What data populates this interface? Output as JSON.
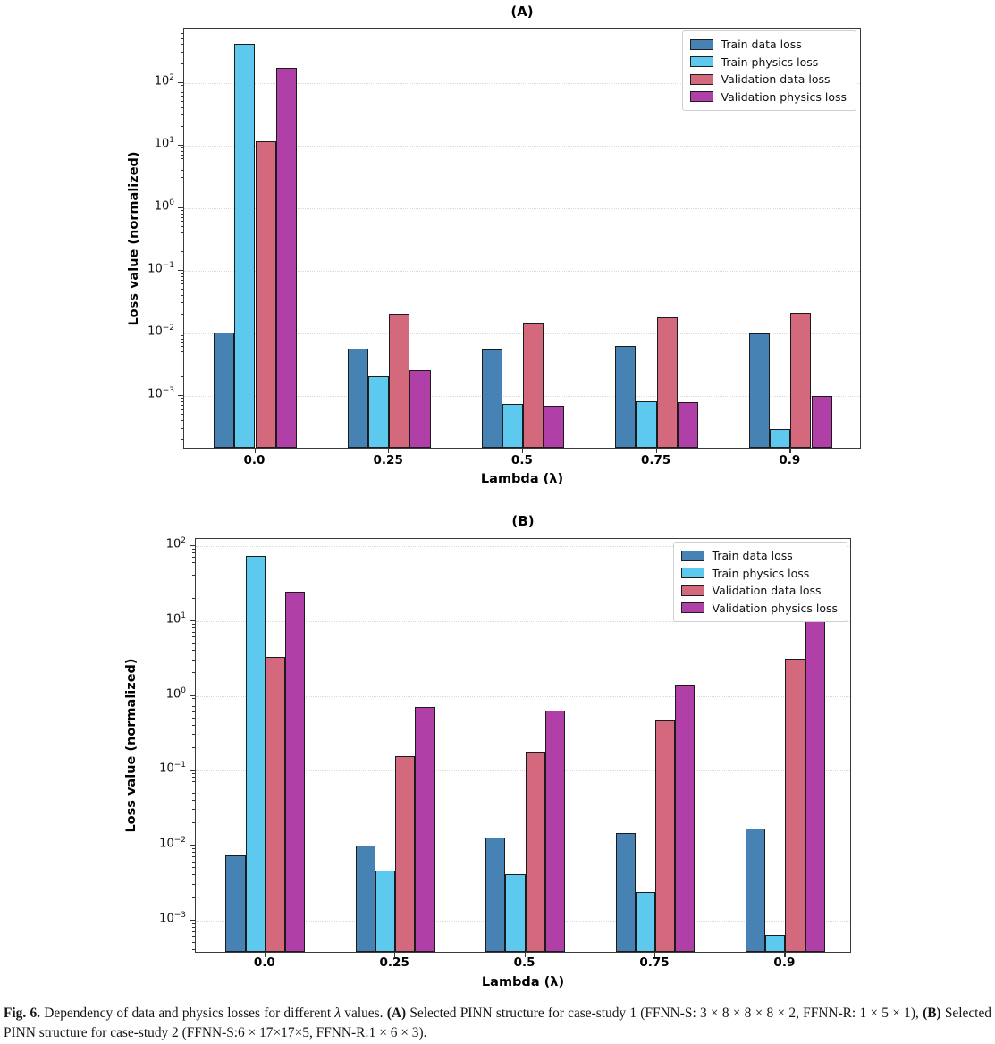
{
  "figure_name": "Fig. 6",
  "chart_data": [
    {
      "id": "A",
      "type": "bar",
      "title": "(A)",
      "xlabel": "Lambda (λ)",
      "ylabel": "Loss value (normalized)",
      "yscale": "log",
      "grid": "dotted-horizontal",
      "legend_position": "top-right",
      "ylim": [
        0.000139,
        734
      ],
      "ytick_exponents": [
        2,
        1,
        0,
        -1,
        -2,
        -3
      ],
      "categories": [
        "0.0",
        "0.25",
        "0.5",
        "0.75",
        "0.9"
      ],
      "series": [
        {
          "name": "Train data loss",
          "color": "#4682B4",
          "values": [
            0.0095,
            0.0054,
            0.0052,
            0.0058,
            0.0092
          ]
        },
        {
          "name": "Train physics loss",
          "color": "#5EC9EE",
          "values": [
            390,
            0.0019,
            0.0007,
            0.00076,
            0.00028
          ]
        },
        {
          "name": "Validation data loss",
          "color": "#D4697E",
          "values": [
            11,
            0.019,
            0.014,
            0.017,
            0.02
          ]
        },
        {
          "name": "Validation physics loss",
          "color": "#B040A8",
          "values": [
            160,
            0.0024,
            0.00066,
            0.00074,
            0.00095
          ]
        }
      ]
    },
    {
      "id": "B",
      "type": "bar",
      "title": "(B)",
      "xlabel": "Lambda (λ)",
      "ylabel": "Loss value (normalized)",
      "yscale": "log",
      "grid": "dotted-horizontal",
      "legend_position": "top-right",
      "ylim": [
        0.00036,
        124.5
      ],
      "ytick_exponents": [
        2,
        1,
        0,
        -1,
        -2,
        -3
      ],
      "categories": [
        "0.0",
        "0.25",
        "0.5",
        "0.75",
        "0.9"
      ],
      "series": [
        {
          "name": "Train data loss",
          "color": "#4682B4",
          "values": [
            0.007,
            0.0095,
            0.012,
            0.014,
            0.016
          ]
        },
        {
          "name": "Train physics loss",
          "color": "#5EC9EE",
          "values": [
            70,
            0.0044,
            0.0039,
            0.0023,
            0.0006
          ]
        },
        {
          "name": "Validation data loss",
          "color": "#D4697E",
          "values": [
            3.1,
            0.15,
            0.17,
            0.44,
            3.0
          ]
        },
        {
          "name": "Validation physics loss",
          "color": "#B040A8",
          "values": [
            23,
            0.68,
            0.61,
            1.35,
            9.5
          ]
        }
      ]
    }
  ],
  "caption": {
    "segments": [
      {
        "t": "Fig. 6.",
        "b": true
      },
      {
        "t": "  Dependency of data and physics losses for different "
      },
      {
        "t": "λ",
        "i": true
      },
      {
        "t": " values. "
      },
      {
        "t": "(A)",
        "b": true
      },
      {
        "t": " Selected PINN structure for case-study 1 (FFNN-S: 3 × 8 × 8 × 8 × 2, FFNN-R: 1 × 5 × 1), "
      },
      {
        "t": "(B)",
        "b": true
      },
      {
        "t": " Selected PINN structure for case-study 2 (FFNN-S:6 × 17×17×5, FFNN-R:1 × 6 × 3)."
      }
    ]
  }
}
